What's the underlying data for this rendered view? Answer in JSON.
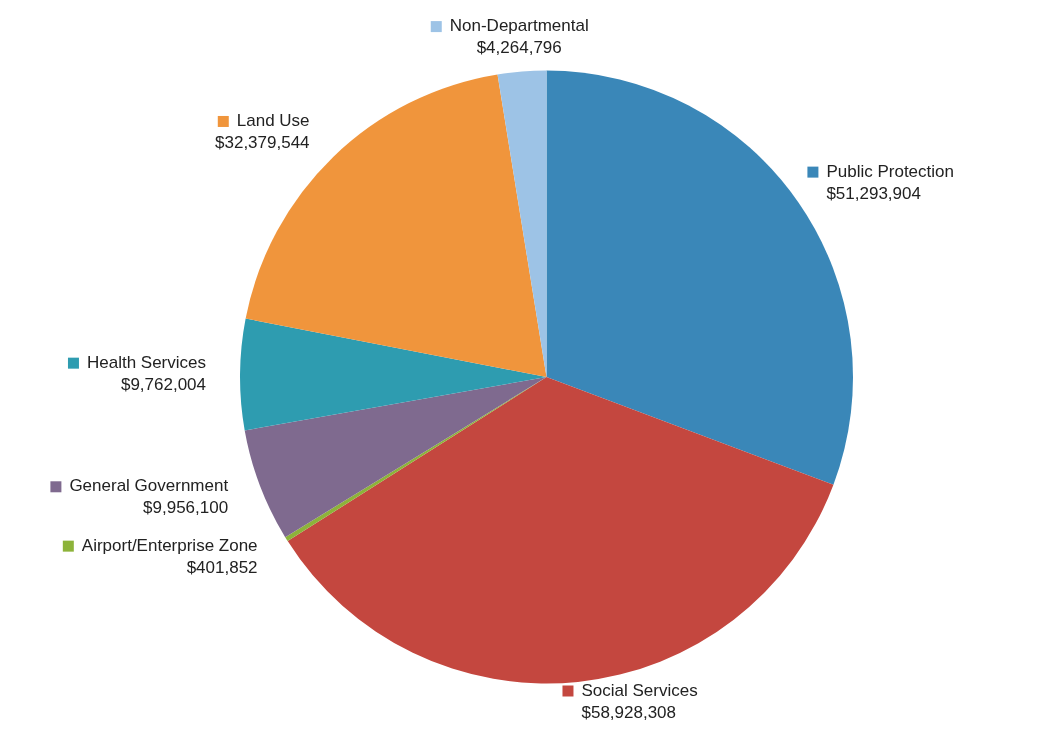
{
  "chart_data": {
    "type": "pie",
    "categories": [
      "Public Protection",
      "Social Services",
      "Airport/Enterprise Zone",
      "General Government",
      "Health Services",
      "Land Use",
      "Non-Departmental"
    ],
    "values": [
      51293904,
      58928308,
      401852,
      9956100,
      9762004,
      32379544,
      4264796
    ],
    "value_labels": [
      "$51,293,904",
      "$58,928,308",
      "$401,852",
      "$9,956,100",
      "$9,762,004",
      "$32,379,544",
      "$4,264,796"
    ],
    "colors": [
      "#3a87b8",
      "#c4473f",
      "#8db33a",
      "#7f6a8f",
      "#2e9cb0",
      "#f0953c",
      "#9dc3e6"
    ],
    "legend": "top left"
  }
}
